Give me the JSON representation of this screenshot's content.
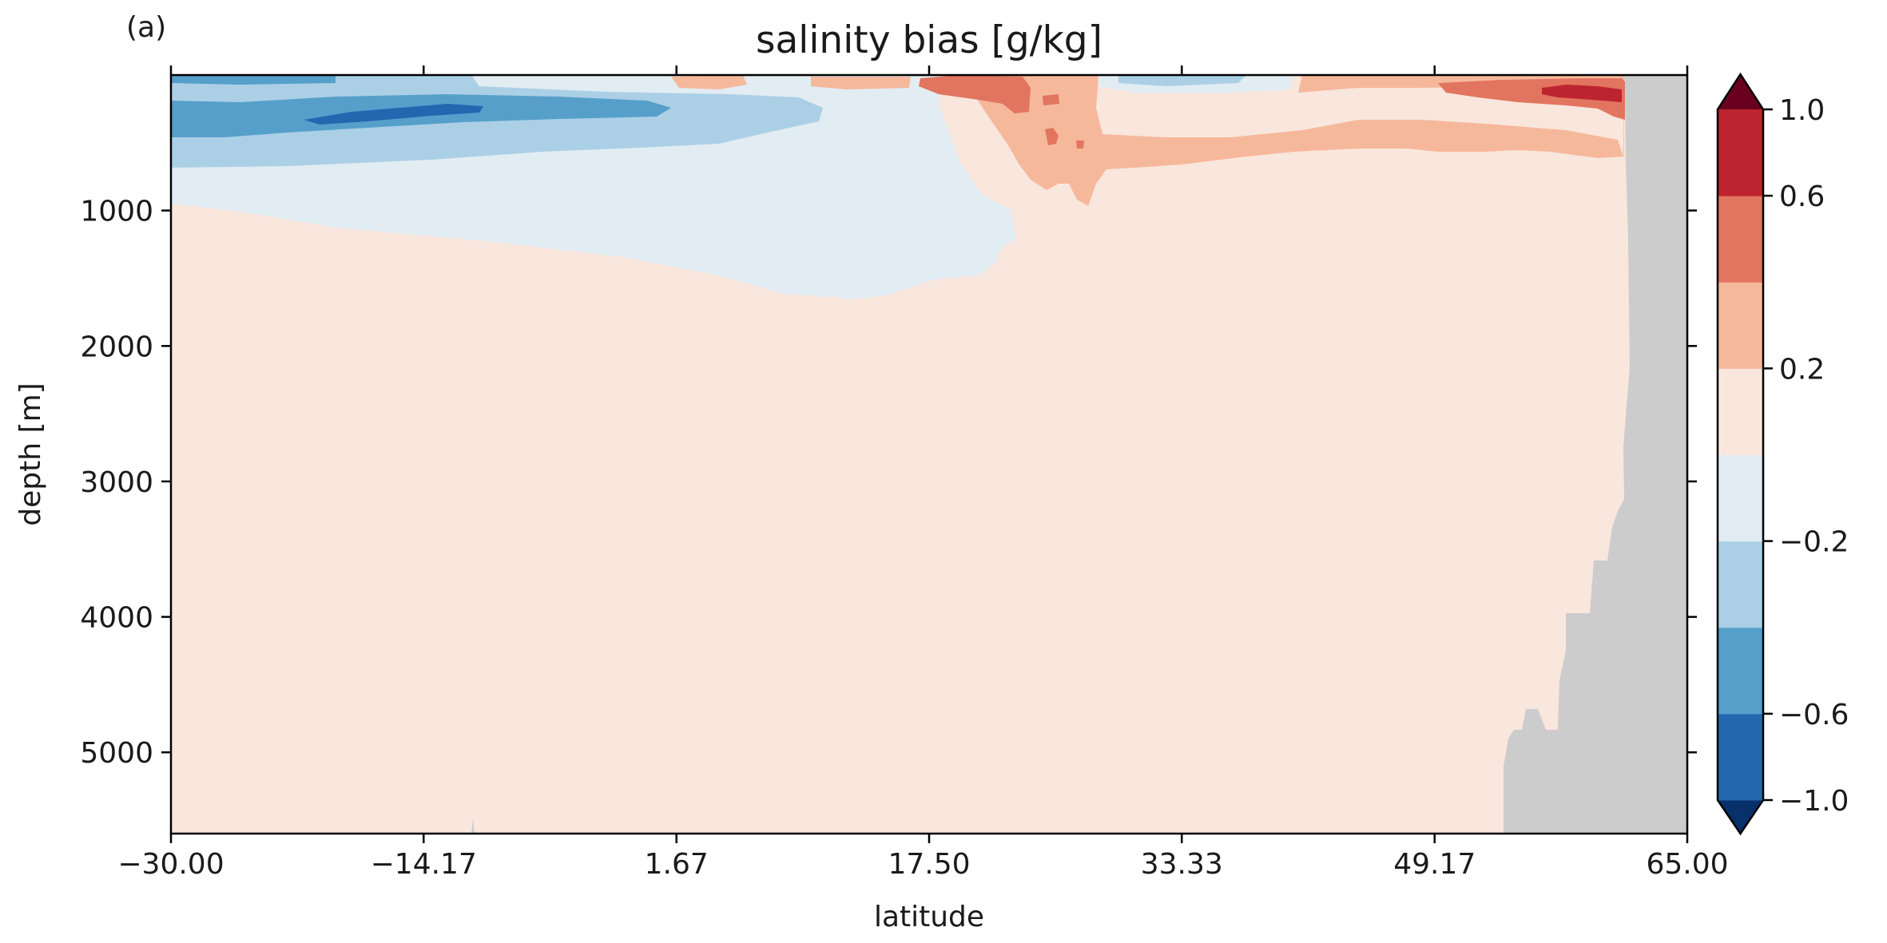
{
  "chart_data": {
    "type": "heatmap",
    "panel_label": "(a)",
    "title": "salinity bias [g/kg]",
    "xlabel": "latitude",
    "ylabel": "depth [m]",
    "xlim": [
      -30.0,
      65.0
    ],
    "ylim": [
      5600,
      0
    ],
    "y_inverted": true,
    "x_ticks": [
      -30.0,
      -14.17,
      1.67,
      17.5,
      33.33,
      49.17,
      65.0
    ],
    "x_tick_labels": [
      "−30.00",
      "−14.17",
      "1.67",
      "17.50",
      "33.33",
      "49.17",
      "65.00"
    ],
    "y_ticks": [
      1000,
      2000,
      3000,
      4000,
      5000
    ],
    "y_tick_labels": [
      "1000",
      "2000",
      "3000",
      "4000",
      "5000"
    ],
    "levels": [
      -1.0,
      -0.8,
      -0.6,
      -0.4,
      -0.2,
      0.0,
      0.2,
      0.4,
      0.6,
      0.8,
      1.0
    ],
    "level_colors": [
      "#053061",
      "#2166ac",
      "#4393c3",
      "#92c5de",
      "#d1e5f0",
      "#fbe3d8",
      "#f4a582",
      "#d6604d",
      "#b2182b",
      "#67001f"
    ],
    "display_colors": [
      "#08306b",
      "#2367b0",
      "#569fcb",
      "#abd0e6",
      "#e2ecf3",
      "#f9e6dd",
      "#f6b89b",
      "#e27560",
      "#bd242f",
      "#6a0020"
    ],
    "land_color": "#cccccc",
    "colorbar": {
      "extend": "both",
      "tick_values": [
        -1.0,
        -0.6,
        -0.2,
        0.2,
        0.6,
        1.0
      ],
      "tick_labels": [
        "−1.0",
        "−0.6",
        "−0.2",
        "0.2",
        "0.6",
        "1.0"
      ]
    },
    "regions": [
      {
        "name": "background",
        "level": 5
      },
      {
        "name": "southern-intermediate-negative",
        "level": 4,
        "lat_range": [
          -30.0,
          23.0
        ],
        "depth_range": [
          0,
          1650
        ]
      },
      {
        "name": "southern-upper-negative",
        "level": 3,
        "lat_range": [
          -30.0,
          12.0
        ],
        "depth_range": [
          0,
          650
        ]
      },
      {
        "name": "southern-core-negative",
        "level": 2,
        "lat_range": [
          -30.0,
          4.0
        ],
        "depth_range": [
          150,
          500
        ]
      },
      {
        "name": "southern-deep-core-negative",
        "level": 1,
        "lat_range": [
          -22.0,
          -12.0
        ],
        "depth_range": [
          200,
          330
        ]
      },
      {
        "name": "subtropical-surface-positive",
        "level": 6,
        "lat_range": [
          17.0,
          58.0
        ],
        "depth_range": [
          0,
          900
        ]
      },
      {
        "name": "subtropical-core-positive",
        "level": 7,
        "lat_range": [
          17.0,
          29.0
        ],
        "depth_range": [
          0,
          320
        ]
      },
      {
        "name": "subpolar-positive",
        "level": 7,
        "lat_range": [
          50.0,
          61.5
        ],
        "depth_range": [
          0,
          320
        ]
      },
      {
        "name": "subpolar-core-positive",
        "level": 8,
        "lat_range": [
          57.0,
          61.0
        ],
        "depth_range": [
          80,
          200
        ]
      },
      {
        "name": "land-mask",
        "level": "land",
        "lat_range": [
          53.5,
          65.0
        ],
        "depth_range": [
          0,
          5600
        ]
      }
    ]
  }
}
